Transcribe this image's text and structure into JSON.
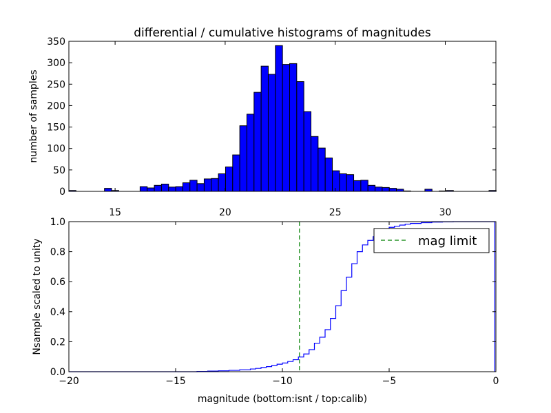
{
  "chart_data": [
    {
      "type": "bar",
      "title": "differential / cumulative histograms of magnitudes",
      "xlabel": "",
      "ylabel": "number of samples",
      "xlim": [
        12.9,
        32.3
      ],
      "ylim": [
        0,
        350
      ],
      "xticks": [
        15,
        20,
        25,
        30
      ],
      "yticks": [
        0,
        50,
        100,
        150,
        200,
        250,
        300,
        350
      ],
      "bar_color": "#0000ff",
      "bin_start": 12.9,
      "bin_width": 0.3235,
      "values": [
        2,
        0,
        0,
        0,
        0,
        7,
        2,
        0,
        0,
        0,
        11,
        8,
        14,
        17,
        10,
        11,
        20,
        26,
        18,
        29,
        30,
        41,
        57,
        85,
        153,
        180,
        231,
        292,
        273,
        340,
        296,
        298,
        256,
        186,
        128,
        101,
        78,
        48,
        41,
        39,
        25,
        26,
        14,
        10,
        9,
        7,
        5,
        1,
        0,
        0,
        5,
        0,
        1,
        2,
        0,
        0,
        0,
        0,
        0,
        2
      ]
    },
    {
      "type": "line",
      "step": true,
      "xlabel": "magnitude (bottom:isnt / top:calib)",
      "ylabel": "Nsample scaled to unity",
      "xlim": [
        -20,
        0
      ],
      "ylim": [
        0,
        1.0
      ],
      "xticks": [
        -20,
        -15,
        -10,
        -5,
        0
      ],
      "yticks": [
        0.0,
        0.2,
        0.4,
        0.6,
        0.8,
        1.0
      ],
      "line_color": "#0000ff",
      "x": [
        -20,
        -14,
        -13.5,
        -13,
        -12.5,
        -12,
        -11.5,
        -11.25,
        -11,
        -10.75,
        -10.5,
        -10.25,
        -10,
        -9.75,
        -9.5,
        -9.25,
        -9,
        -8.75,
        -8.5,
        -8.25,
        -8,
        -7.75,
        -7.5,
        -7.25,
        -7,
        -6.75,
        -6.5,
        -6.25,
        -6,
        -5.75,
        -5.5,
        -5.25,
        -5,
        -4.75,
        -4.5,
        -4.25,
        -4,
        -3.5,
        -3,
        -2.5,
        -2,
        -1,
        -0.05
      ],
      "y": [
        0.0,
        0.002,
        0.004,
        0.006,
        0.009,
        0.013,
        0.018,
        0.022,
        0.028,
        0.034,
        0.042,
        0.05,
        0.058,
        0.068,
        0.08,
        0.098,
        0.118,
        0.147,
        0.19,
        0.23,
        0.28,
        0.355,
        0.44,
        0.54,
        0.63,
        0.72,
        0.8,
        0.845,
        0.875,
        0.9,
        0.93,
        0.952,
        0.962,
        0.97,
        0.977,
        0.983,
        0.988,
        0.993,
        0.997,
        0.999,
        1.0,
        1.0,
        1.0
      ],
      "series": [
        {
          "name": "mag limit",
          "type": "vline",
          "x": -9.2,
          "color": "#008000",
          "dashed": true
        }
      ],
      "legend": "top-right"
    }
  ]
}
